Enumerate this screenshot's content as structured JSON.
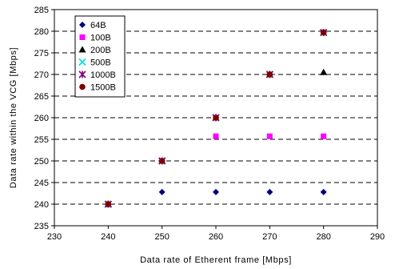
{
  "chart_data": {
    "type": "scatter",
    "title": "",
    "xlabel": "Data rate of Etherent frame [Mbps]",
    "ylabel": "Data rate within the VCG [Mbps]",
    "xlim": [
      230,
      290
    ],
    "ylim": [
      235,
      285
    ],
    "xticks": [
      230,
      240,
      250,
      260,
      270,
      280,
      290
    ],
    "yticks": [
      235,
      240,
      245,
      250,
      255,
      260,
      265,
      270,
      275,
      280,
      285
    ],
    "grid": "horizontal dashed",
    "legend_position": "top-left",
    "series": [
      {
        "name": "64B",
        "marker": "diamond",
        "color": "#000080",
        "points": [
          [
            240,
            240
          ],
          [
            250,
            242.8
          ],
          [
            260,
            242.8
          ],
          [
            270,
            242.8
          ],
          [
            280,
            242.8
          ]
        ]
      },
      {
        "name": "100B",
        "marker": "square",
        "color": "#ff00ff",
        "points": [
          [
            240,
            240
          ],
          [
            250,
            250
          ],
          [
            260,
            255.7
          ],
          [
            270,
            255.7
          ],
          [
            280,
            255.7
          ]
        ]
      },
      {
        "name": "200B",
        "marker": "triangle",
        "color": "#000000",
        "points": [
          [
            240,
            240
          ],
          [
            250,
            250
          ],
          [
            260,
            260
          ],
          [
            270,
            270
          ],
          [
            280,
            270.5
          ]
        ]
      },
      {
        "name": "500B",
        "marker": "x",
        "color": "#00e0e0",
        "points": [
          [
            240,
            240
          ],
          [
            250,
            250
          ],
          [
            260,
            260
          ],
          [
            270,
            270
          ],
          [
            280,
            279.7
          ]
        ]
      },
      {
        "name": "1000B",
        "marker": "star",
        "color": "#800080",
        "points": [
          [
            240,
            240
          ],
          [
            250,
            250
          ],
          [
            260,
            260
          ],
          [
            270,
            270
          ],
          [
            280,
            279.7
          ]
        ]
      },
      {
        "name": "1500B",
        "marker": "circle",
        "color": "#800000",
        "points": [
          [
            240,
            240
          ],
          [
            250,
            250
          ],
          [
            260,
            260
          ],
          [
            270,
            270
          ],
          [
            280,
            279.7
          ]
        ]
      }
    ]
  }
}
